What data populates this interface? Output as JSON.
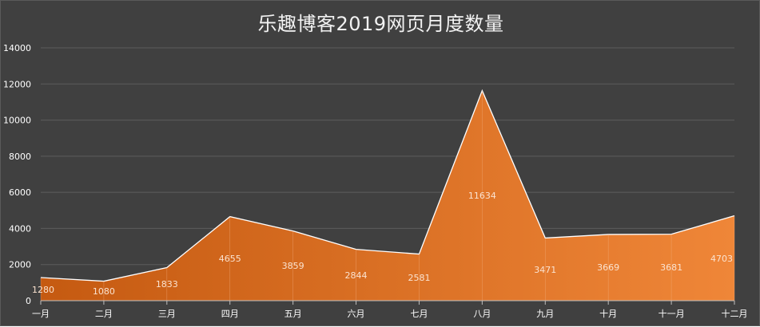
{
  "chart_data": {
    "type": "area",
    "title": "乐趣博客2019网页月度数量",
    "categories": [
      "一月",
      "二月",
      "三月",
      "四月",
      "五月",
      "六月",
      "七月",
      "八月",
      "九月",
      "十月",
      "十一月",
      "十二月"
    ],
    "series": [
      {
        "values": [
          1280,
          1080,
          1833,
          4655,
          3859,
          2844,
          2581,
          11634,
          3471,
          3669,
          3681,
          4703
        ]
      }
    ],
    "ylim": [
      0,
      14000
    ],
    "yticks": [
      0,
      2000,
      4000,
      6000,
      8000,
      10000,
      12000,
      14000
    ],
    "grid": true,
    "data_labels": true,
    "colors": {
      "background": "#404040",
      "area_start": "#c55a11",
      "area_end": "#ef8638",
      "gridline": "#5c5c5c",
      "text": "#ffffff"
    }
  }
}
